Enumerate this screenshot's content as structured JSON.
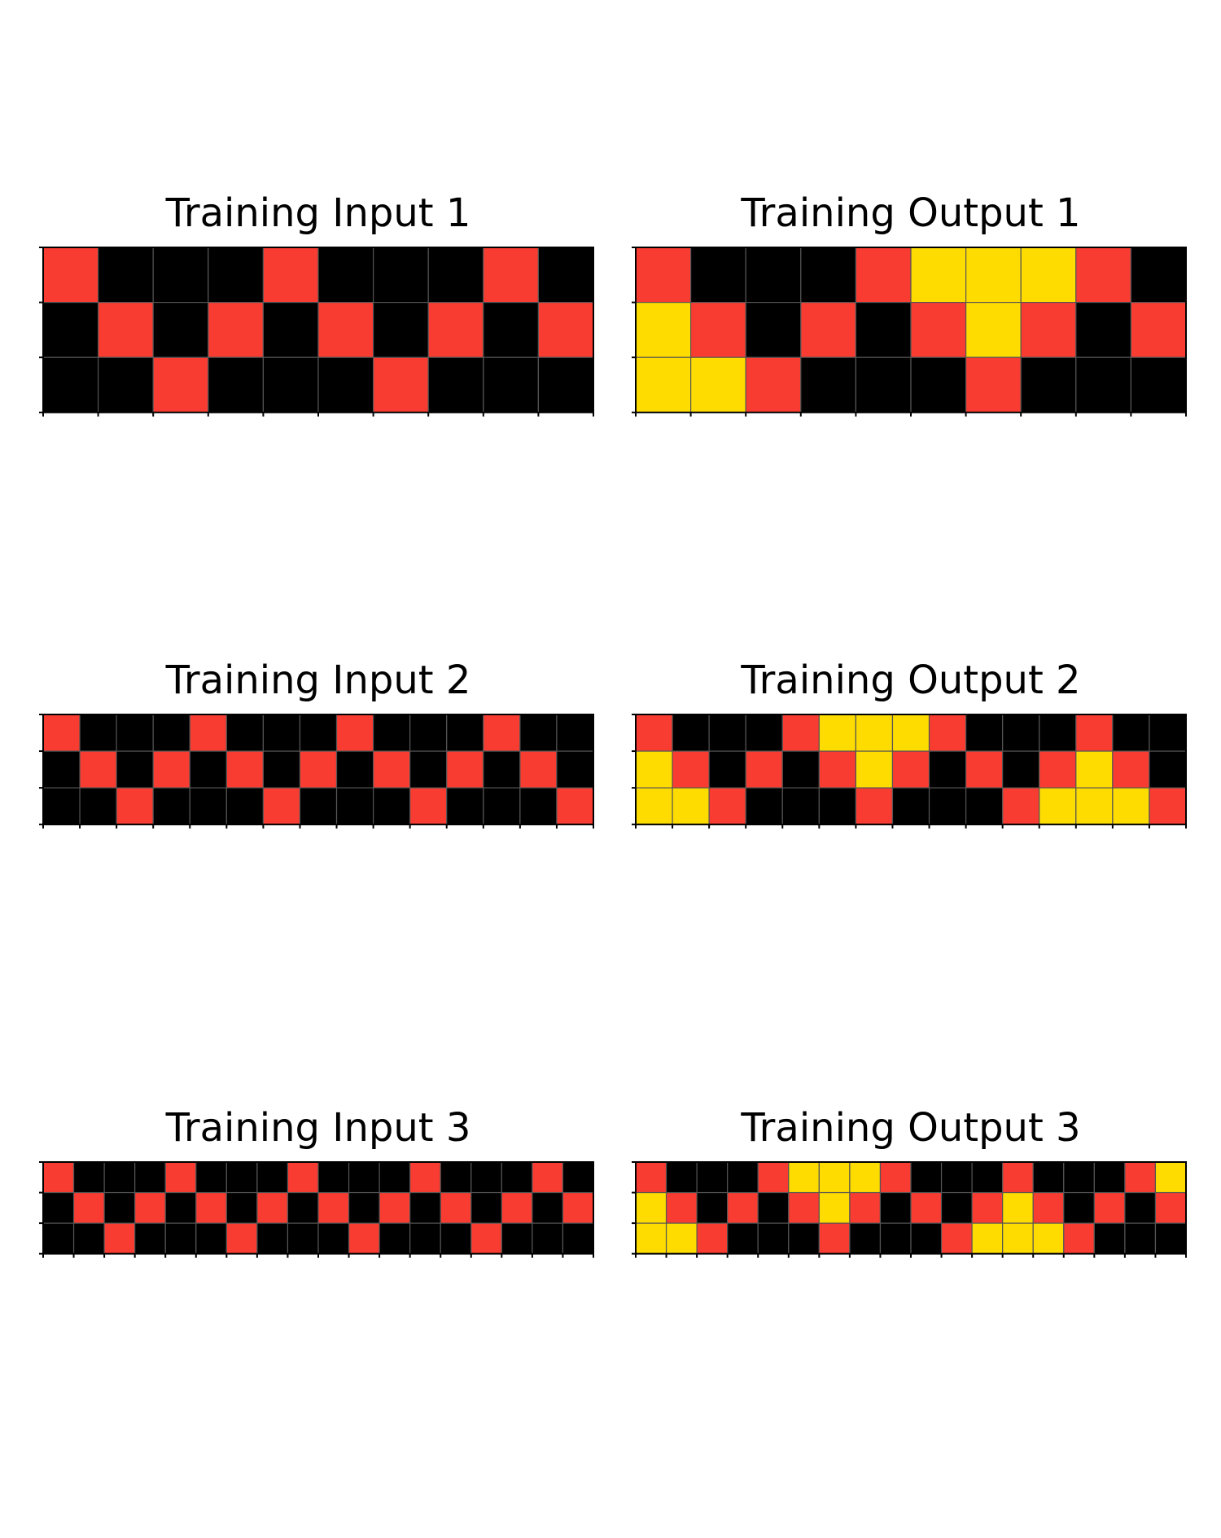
{
  "colors": {
    "background": "#ffffff",
    "black": "#000000",
    "red": "#f93c31",
    "yellow": "#ffdc00",
    "gridline": "#555555",
    "frame": "#000000",
    "title": "#000000"
  },
  "palette": {
    "0": "#000000",
    "2": "#f93c31",
    "4": "#ffdc00"
  },
  "panels": [
    {
      "id": "training-input-1",
      "title": "Training Input 1",
      "grid": [
        [
          2,
          0,
          0,
          0,
          2,
          0,
          0,
          0,
          2,
          0
        ],
        [
          0,
          2,
          0,
          2,
          0,
          2,
          0,
          2,
          0,
          2
        ],
        [
          0,
          0,
          2,
          0,
          0,
          0,
          2,
          0,
          0,
          0
        ]
      ]
    },
    {
      "id": "training-output-1",
      "title": "Training Output 1",
      "grid": [
        [
          2,
          0,
          0,
          0,
          2,
          4,
          4,
          4,
          2,
          0
        ],
        [
          4,
          2,
          0,
          2,
          0,
          2,
          4,
          2,
          0,
          2
        ],
        [
          4,
          4,
          2,
          0,
          0,
          0,
          2,
          0,
          0,
          0
        ]
      ]
    },
    {
      "id": "training-input-2",
      "title": "Training Input 2",
      "grid": [
        [
          2,
          0,
          0,
          0,
          2,
          0,
          0,
          0,
          2,
          0,
          0,
          0,
          2,
          0,
          0
        ],
        [
          0,
          2,
          0,
          2,
          0,
          2,
          0,
          2,
          0,
          2,
          0,
          2,
          0,
          2,
          0
        ],
        [
          0,
          0,
          2,
          0,
          0,
          0,
          2,
          0,
          0,
          0,
          2,
          0,
          0,
          0,
          2
        ]
      ]
    },
    {
      "id": "training-output-2",
      "title": "Training Output 2",
      "grid": [
        [
          2,
          0,
          0,
          0,
          2,
          4,
          4,
          4,
          2,
          0,
          0,
          0,
          2,
          0,
          0
        ],
        [
          4,
          2,
          0,
          2,
          0,
          2,
          4,
          2,
          0,
          2,
          0,
          2,
          4,
          2,
          0
        ],
        [
          4,
          4,
          2,
          0,
          0,
          0,
          2,
          0,
          0,
          0,
          2,
          4,
          4,
          4,
          2
        ]
      ]
    },
    {
      "id": "training-input-3",
      "title": "Training Input 3",
      "grid": [
        [
          2,
          0,
          0,
          0,
          2,
          0,
          0,
          0,
          2,
          0,
          0,
          0,
          2,
          0,
          0,
          0,
          2,
          0
        ],
        [
          0,
          2,
          0,
          2,
          0,
          2,
          0,
          2,
          0,
          2,
          0,
          2,
          0,
          2,
          0,
          2,
          0,
          2
        ],
        [
          0,
          0,
          2,
          0,
          0,
          0,
          2,
          0,
          0,
          0,
          2,
          0,
          0,
          0,
          2,
          0,
          0,
          0
        ]
      ]
    },
    {
      "id": "training-output-3",
      "title": "Training Output 3",
      "grid": [
        [
          2,
          0,
          0,
          0,
          2,
          4,
          4,
          4,
          2,
          0,
          0,
          0,
          2,
          0,
          0,
          0,
          2,
          4
        ],
        [
          4,
          2,
          0,
          2,
          0,
          2,
          4,
          2,
          0,
          2,
          0,
          2,
          4,
          2,
          0,
          2,
          0,
          2
        ],
        [
          4,
          4,
          2,
          0,
          0,
          0,
          2,
          0,
          0,
          0,
          2,
          4,
          4,
          4,
          2,
          0,
          0,
          0
        ]
      ]
    }
  ]
}
